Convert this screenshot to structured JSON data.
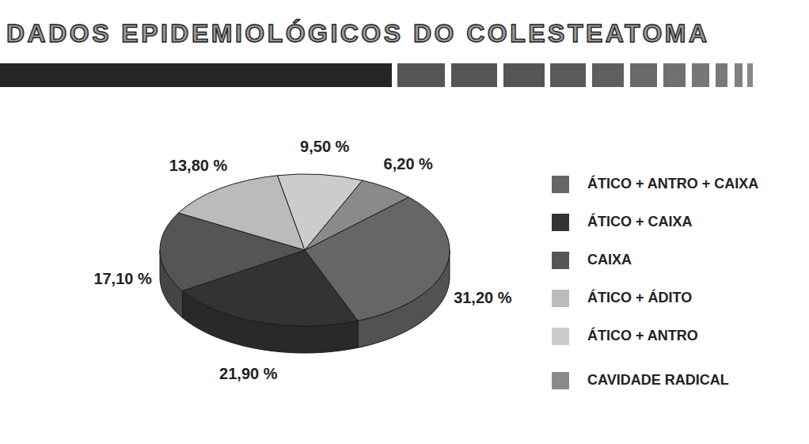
{
  "chart_data": {
    "type": "pie",
    "title": "DADOS EPIDEMIOLÓGICOS DO COLESTEATOMA",
    "categories": [
      "ÁTICO + ANTRO + CAIXA",
      "ÁTICO + CAIXA",
      "CAIXA",
      "ÁTICO + ÁDITO",
      "ÁTICO + ANTRO",
      "CAVIDADE RADICAL"
    ],
    "values": [
      31.2,
      21.9,
      17.1,
      13.8,
      9.5,
      6.2
    ],
    "value_labels": [
      "31,20 %",
      "21,90 %",
      "17,10 %",
      "13,80 %",
      "9,50 %",
      "6,20 %"
    ],
    "colors": [
      "#666666",
      "#333333",
      "#555555",
      "#bbbbbb",
      "#cccccc",
      "#8a8a8a"
    ],
    "data_labels": true,
    "legend": "right"
  }
}
